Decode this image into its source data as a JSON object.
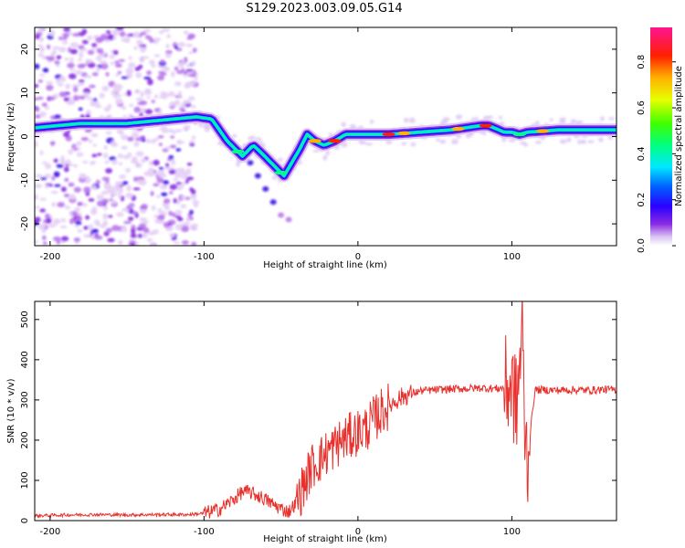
{
  "title": "S129.2023.003.09.05.G14",
  "colorbar": {
    "label": "Normalized spectral amplitude",
    "ticks": [
      "0.0",
      "0.2",
      "0.4",
      "0.6",
      "0.8"
    ],
    "tick_values": [
      0.0,
      0.2,
      0.4,
      0.6,
      0.8
    ],
    "range": [
      0.0,
      0.95
    ],
    "colormap": "rainbow (lavender-white low → violet → blue → cyan → green → yellow → orange → red → magenta high)"
  },
  "chart_data": [
    {
      "type": "heatmap",
      "panel": "spectrogram",
      "xlabel": "Height of straight line (km)",
      "ylabel": "Frequency (Hz)",
      "xlim": [
        -210,
        168
      ],
      "ylim": [
        -25,
        25
      ],
      "xticks": [
        -200,
        -100,
        0,
        100
      ],
      "yticks": [
        -20,
        -10,
        0,
        10,
        20
      ],
      "ridge": {
        "x": [
          -210,
          -180,
          -150,
          -120,
          -105,
          -95,
          -85,
          -75,
          -68,
          -62,
          -55,
          -48,
          -43,
          -38,
          -33,
          -28,
          -22,
          -15,
          -8,
          0,
          20,
          40,
          60,
          80,
          85,
          95,
          100,
          105,
          110,
          130,
          150,
          168
        ],
        "y": [
          2,
          3,
          3,
          4,
          4.5,
          4,
          -1,
          -4.5,
          -2,
          -4,
          -6.5,
          -9,
          -6,
          -3,
          0.5,
          -1,
          -2,
          -1,
          0.5,
          0.5,
          0.5,
          1,
          1.5,
          2.5,
          2.5,
          1,
          1,
          0.5,
          1,
          1.5,
          1.5,
          1.5
        ]
      },
      "secondary_track": {
        "x": [
          -70,
          -65,
          -60,
          -55,
          -50,
          -45
        ],
        "y": [
          -6,
          -9,
          -12,
          -15,
          -18,
          -19
        ]
      },
      "noise_region_x": [
        -210,
        -105
      ]
    },
    {
      "type": "line",
      "panel": "snr",
      "xlabel": "Height of straight line (km)",
      "ylabel": "SNR (10 * v/v)",
      "xlim": [
        -210,
        168
      ],
      "ylim": [
        0,
        545
      ],
      "xticks": [
        -200,
        -100,
        0,
        100
      ],
      "yticks": [
        0,
        100,
        200,
        300,
        400,
        500
      ],
      "series": [
        {
          "color": "#e8302c",
          "x": [
            -210,
            -190,
            -170,
            -150,
            -130,
            -110,
            -100,
            -90,
            -80,
            -75,
            -70,
            -65,
            -60,
            -55,
            -50,
            -45,
            -40,
            -35,
            -30,
            -25,
            -20,
            -15,
            -10,
            -5,
            0,
            5,
            10,
            15,
            20,
            25,
            30,
            40,
            50,
            60,
            70,
            80,
            90,
            95,
            100,
            103,
            105,
            107,
            108,
            110,
            115,
            120,
            130,
            140,
            150,
            160,
            168
          ],
          "y": [
            12,
            14,
            15,
            14,
            15,
            15,
            18,
            28,
            55,
            72,
            70,
            62,
            52,
            40,
            30,
            22,
            45,
            90,
            135,
            150,
            170,
            185,
            200,
            210,
            220,
            228,
            250,
            270,
            285,
            300,
            310,
            322,
            325,
            327,
            328,
            330,
            328,
            330,
            335,
            280,
            380,
            480,
            260,
            150,
            325,
            325,
            324,
            325,
            324,
            326,
            325
          ]
        }
      ]
    }
  ]
}
